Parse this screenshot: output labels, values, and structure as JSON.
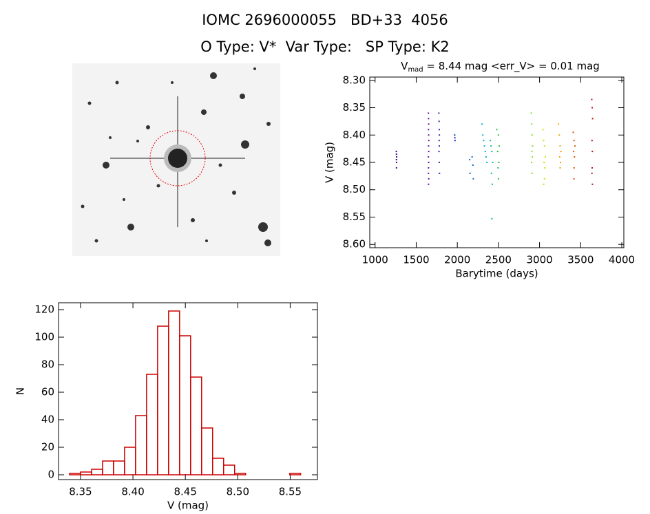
{
  "header": {
    "title": "IOMC 2696000055   BD+33  4056",
    "subtitle": "O Type: V*  Var Type:   SP Type: K2"
  },
  "chart_data": [
    {
      "type": "scatter",
      "title": "V",
      "title_subscript": "mad",
      "title_suffix": " = 8.44 mag <err_V> = 0.01 mag",
      "x_label": "Barytime (days)",
      "y_label": "V (mag)",
      "xlim": [
        935,
        4025
      ],
      "xticks": [
        1000,
        1500,
        2000,
        2500,
        3000,
        3500,
        4000
      ],
      "ylim": [
        8.606,
        8.294
      ],
      "yticks": [
        {
          "value": 8.3,
          "label": "8.30"
        },
        8.35,
        {
          "value": 8.4,
          "label": "8.40"
        },
        8.45,
        {
          "value": 8.5,
          "label": "8.50"
        },
        8.55,
        {
          "value": 8.6,
          "label": "8.60"
        }
      ],
      "series": [
        {
          "color": "#4b0082",
          "x": [
            1258,
            1260,
            1262,
            1259,
            1261,
            1260
          ],
          "values": [
            8.43,
            8.435,
            8.44,
            8.445,
            8.45,
            8.46
          ]
        },
        {
          "color": "#6a0dad",
          "x": [
            1648,
            1650,
            1652,
            1649,
            1651,
            1653,
            1650,
            1652,
            1648,
            1651,
            1650,
            1649,
            1652,
            1650
          ],
          "values": [
            8.36,
            8.37,
            8.38,
            8.39,
            8.4,
            8.41,
            8.42,
            8.43,
            8.44,
            8.45,
            8.46,
            8.47,
            8.48,
            8.49
          ]
        },
        {
          "color": "#3a1fb0",
          "x": [
            1775,
            1778,
            1780,
            1782,
            1779,
            1781,
            1777,
            1780,
            1783
          ],
          "values": [
            8.36,
            8.375,
            8.39,
            8.4,
            8.41,
            8.42,
            8.43,
            8.45,
            8.47
          ]
        },
        {
          "color": "#0030c0",
          "x": [
            1968,
            1970,
            1972
          ],
          "values": [
            8.4,
            8.405,
            8.41
          ]
        },
        {
          "color": "#0070d0",
          "x": [
            2150,
            2155,
            2180,
            2190,
            2195
          ],
          "values": [
            8.445,
            8.47,
            8.44,
            8.455,
            8.48
          ]
        },
        {
          "color": "#00b0d0",
          "x": [
            2300,
            2310,
            2330,
            2340,
            2350,
            2360,
            2320
          ],
          "values": [
            8.38,
            8.4,
            8.42,
            8.43,
            8.44,
            8.45,
            8.41
          ]
        },
        {
          "color": "#00c090",
          "x": [
            2400,
            2410,
            2420,
            2430,
            2415,
            2425,
            2420
          ],
          "values": [
            8.41,
            8.42,
            8.43,
            8.45,
            8.47,
            8.49,
            8.553
          ]
        },
        {
          "color": "#20c040",
          "x": [
            2480,
            2500,
            2510,
            2490,
            2505,
            2495,
            2500
          ],
          "values": [
            8.39,
            8.4,
            8.42,
            8.43,
            8.45,
            8.46,
            8.48
          ]
        },
        {
          "color": "#80e020",
          "x": [
            2900,
            2905,
            2910,
            2915,
            2908,
            2912,
            2903,
            2910
          ],
          "values": [
            8.36,
            8.38,
            8.4,
            8.42,
            8.43,
            8.44,
            8.45,
            8.47
          ]
        },
        {
          "color": "#c8e000",
          "x": [
            3040,
            3050,
            3060,
            3070,
            3055,
            3065,
            3060,
            3050
          ],
          "values": [
            8.39,
            8.41,
            8.42,
            8.44,
            8.45,
            8.46,
            8.48,
            8.49
          ]
        },
        {
          "color": "#f0a000",
          "x": [
            3230,
            3240,
            3250,
            3260,
            3245,
            3255,
            3250
          ],
          "values": [
            8.38,
            8.4,
            8.42,
            8.43,
            8.44,
            8.45,
            8.46
          ]
        },
        {
          "color": "#e05000",
          "x": [
            3410,
            3420,
            3430,
            3415,
            3425,
            3420,
            3418
          ],
          "values": [
            8.395,
            8.41,
            8.42,
            8.43,
            8.44,
            8.46,
            8.48
          ]
        },
        {
          "color": "#c01010",
          "x": [
            3635,
            3640,
            3645,
            3638,
            3642,
            3640,
            3637,
            3643
          ],
          "values": [
            8.335,
            8.35,
            8.37,
            8.41,
            8.43,
            8.46,
            8.47,
            8.49
          ]
        }
      ]
    },
    {
      "type": "histogram",
      "x_label": "V (mag)",
      "y_label": "N",
      "color": "#cc0000",
      "bins": [
        8.3395,
        8.35,
        8.3605,
        8.371,
        8.3815,
        8.392,
        8.4025,
        8.413,
        8.4235,
        8.434,
        8.4445,
        8.455,
        8.4655,
        8.476,
        8.4865,
        8.497,
        8.5075,
        8.518,
        8.5285,
        8.539,
        8.5495,
        8.56
      ],
      "values": [
        1,
        2,
        4,
        10,
        10,
        20,
        43,
        73,
        108,
        119,
        101,
        71,
        34,
        12,
        7,
        1,
        0,
        0,
        0,
        0,
        1
      ],
      "xlim": [
        8.329,
        8.576
      ],
      "xticks": [
        8.35,
        {
          "value": 8.4,
          "label": "8.40"
        },
        8.45,
        {
          "value": 8.5,
          "label": "8.50"
        },
        8.55
      ],
      "ylim": [
        -3.5,
        125
      ],
      "yticks": [
        0,
        20,
        40,
        60,
        80,
        100,
        120
      ]
    }
  ]
}
